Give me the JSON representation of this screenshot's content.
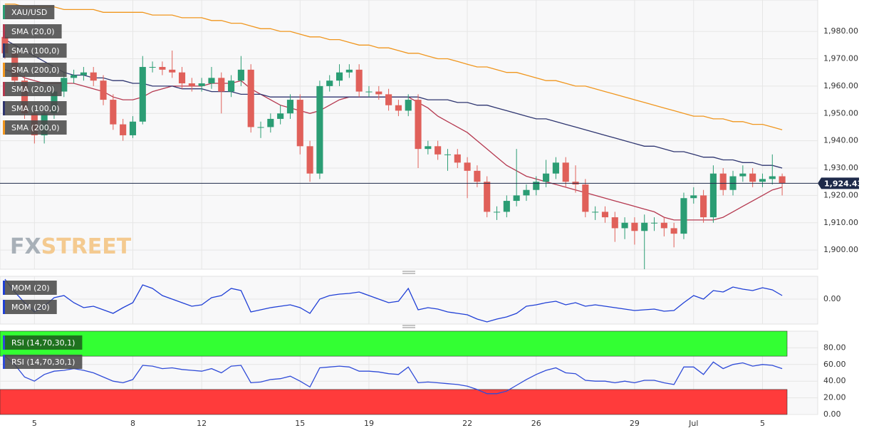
{
  "chart_data": [
    {
      "type": "candlestick",
      "name": "XAU/USD",
      "categories": [
        null,
        null,
        null,
        "5",
        null,
        null,
        null,
        null,
        null,
        null,
        null,
        null,
        null,
        "8",
        null,
        null,
        null,
        null,
        null,
        null,
        "12",
        null,
        null,
        null,
        null,
        null,
        null,
        null,
        null,
        null,
        "15",
        null,
        null,
        null,
        null,
        null,
        null,
        "19",
        null,
        null,
        null,
        null,
        null,
        null,
        null,
        null,
        null,
        "22",
        null,
        null,
        null,
        null,
        null,
        null,
        "26",
        null,
        null,
        null,
        null,
        null,
        null,
        null,
        null,
        null,
        "29",
        null,
        null,
        null,
        null,
        null,
        "Jul",
        null,
        null,
        null,
        null,
        null,
        null,
        "5",
        null,
        null
      ],
      "open": [
        1978,
        1972,
        1962,
        1950,
        1942,
        1950,
        1958,
        1963,
        1964,
        1965,
        1962,
        1955,
        1946,
        1942,
        1947,
        1967,
        1967,
        1966,
        1965,
        1961,
        1960,
        1961,
        1963,
        1958,
        1962,
        1966,
        1945,
        1945,
        1948,
        1950,
        1955,
        1938,
        1928,
        1960,
        1962,
        1965,
        1966,
        1958,
        1958,
        1957,
        1953,
        1951,
        1955,
        1937,
        1938,
        1935,
        1935,
        1932,
        1929,
        1925,
        1914,
        1914,
        1918,
        1920,
        1922,
        1925,
        1928,
        1932,
        1925,
        1924,
        1914,
        1914,
        1912,
        1908,
        1910,
        1907,
        1910,
        1910,
        1908,
        1906,
        1919,
        1920,
        1912,
        1928,
        1922,
        1927,
        1928,
        1925,
        1926,
        1927
      ],
      "high": [
        1980,
        1974,
        1964,
        1951,
        1952,
        1960,
        1965,
        1966,
        1967,
        1967,
        1964,
        1957,
        1948,
        1949,
        1971,
        1969,
        1969,
        1973,
        1967,
        1963,
        1963,
        1967,
        1965,
        1964,
        1971,
        1968,
        1947,
        1950,
        1953,
        1957,
        1957,
        1940,
        1962,
        1964,
        1968,
        1968,
        1968,
        1960,
        1960,
        1959,
        1955,
        1957,
        1957,
        1940,
        1940,
        1937,
        1937,
        1934,
        1931,
        1927,
        1916,
        1920,
        1937,
        1924,
        1927,
        1933,
        1934,
        1934,
        1931,
        1926,
        1916,
        1916,
        1914,
        1912,
        1912,
        1913,
        1912,
        1912,
        1910,
        1921,
        1923,
        1922,
        1931,
        1930,
        1929,
        1931,
        1930,
        1928,
        1935,
        1928
      ],
      "low": [
        1970,
        1960,
        1948,
        1939,
        1939,
        1948,
        1956,
        1961,
        1962,
        1960,
        1953,
        1944,
        1940,
        1941,
        1946,
        1965,
        1964,
        1963,
        1959,
        1958,
        1958,
        1959,
        1950,
        1956,
        1960,
        1943,
        1941,
        1943,
        1946,
        1948,
        1935,
        1925,
        1926,
        1958,
        1960,
        1963,
        1956,
        1956,
        1955,
        1951,
        1949,
        1949,
        1930,
        1935,
        1933,
        1929,
        1930,
        1919,
        1923,
        1912,
        1911,
        1912,
        1916,
        1918,
        1920,
        1923,
        1926,
        1923,
        1921,
        1912,
        1911,
        1910,
        1903,
        1904,
        1902,
        1893,
        1907,
        1905,
        1901,
        1904,
        1917,
        1910,
        1910,
        1920,
        1920,
        1925,
        1923,
        1923,
        1924,
        1920
      ],
      "close": [
        1972,
        1962,
        1950,
        1942,
        1950,
        1958,
        1963,
        1964,
        1965,
        1962,
        1955,
        1946,
        1942,
        1947,
        1967,
        1967,
        1966,
        1965,
        1961,
        1960,
        1961,
        1963,
        1958,
        1962,
        1966,
        1945,
        1945,
        1948,
        1950,
        1955,
        1938,
        1928,
        1960,
        1962,
        1965,
        1966,
        1958,
        1958,
        1957,
        1953,
        1951,
        1955,
        1937,
        1938,
        1935,
        1935,
        1932,
        1929,
        1925,
        1914,
        1914,
        1918,
        1920,
        1922,
        1925,
        1928,
        1932,
        1925,
        1924,
        1914,
        1914,
        1912,
        1908,
        1910,
        1907,
        1910,
        1910,
        1908,
        1906,
        1919,
        1920,
        1912,
        1928,
        1922,
        1927,
        1928,
        1925,
        1926,
        1927,
        1924.43
      ],
      "up_color": "#2b9d74",
      "down_color": "#e0605a",
      "series": [
        {
          "name": "SMA (20,0)",
          "color": "#b5384f",
          "values": [
            1966,
            1965,
            1963,
            1962,
            1961,
            1961,
            1961,
            1961,
            1960,
            1959,
            1958,
            1956,
            1955,
            1955,
            1956,
            1958,
            1959,
            1960,
            1960,
            1960,
            1960,
            1961,
            1961,
            1961,
            1962,
            1959,
            1957,
            1955,
            1953,
            1952,
            1951,
            1950,
            1951,
            1953,
            1955,
            1956,
            1956,
            1956,
            1956,
            1956,
            1956,
            1956,
            1954,
            1952,
            1949,
            1947,
            1945,
            1943,
            1940,
            1937,
            1934,
            1931,
            1929,
            1927,
            1926,
            1925,
            1924,
            1923,
            1922,
            1921,
            1920,
            1919,
            1918,
            1917,
            1916,
            1915,
            1914,
            1912,
            1911,
            1911,
            1911,
            1911,
            1911,
            1912,
            1914,
            1916,
            1918,
            1920,
            1922,
            1923
          ]
        },
        {
          "name": "SMA (100,0)",
          "color": "#2e3570",
          "values": [
            1977,
            1975,
            1973,
            1971,
            1969,
            1967,
            1965,
            1964,
            1964,
            1963,
            1963,
            1962,
            1962,
            1961,
            1961,
            1960,
            1960,
            1960,
            1959,
            1959,
            1959,
            1958,
            1958,
            1958,
            1957,
            1957,
            1957,
            1956,
            1956,
            1956,
            1956,
            1956,
            1956,
            1956,
            1956,
            1956,
            1956,
            1956,
            1956,
            1956,
            1956,
            1956,
            1956,
            1955,
            1955,
            1955,
            1954,
            1954,
            1953,
            1953,
            1952,
            1951,
            1950,
            1949,
            1948,
            1948,
            1947,
            1946,
            1945,
            1944,
            1943,
            1942,
            1941,
            1940,
            1939,
            1938,
            1938,
            1937,
            1936,
            1936,
            1935,
            1934,
            1934,
            1933,
            1933,
            1932,
            1932,
            1931,
            1931,
            1930
          ]
        },
        {
          "name": "SMA (200,0)",
          "color": "#f0961e",
          "values": [
            1990,
            1990,
            1989,
            1989,
            1989,
            1989,
            1988,
            1988,
            1988,
            1988,
            1987,
            1987,
            1987,
            1987,
            1987,
            1986,
            1986,
            1986,
            1985,
            1985,
            1985,
            1984,
            1984,
            1983,
            1983,
            1982,
            1981,
            1981,
            1980,
            1980,
            1979,
            1978,
            1978,
            1977,
            1977,
            1976,
            1975,
            1975,
            1974,
            1974,
            1973,
            1972,
            1972,
            1971,
            1970,
            1970,
            1969,
            1968,
            1967,
            1967,
            1966,
            1965,
            1965,
            1964,
            1963,
            1962,
            1962,
            1961,
            1960,
            1960,
            1959,
            1958,
            1957,
            1956,
            1955,
            1954,
            1953,
            1952,
            1951,
            1950,
            1949,
            1949,
            1948,
            1948,
            1947,
            1947,
            1946,
            1946,
            1945,
            1944
          ]
        }
      ],
      "ylim": [
        1893,
        1991.5
      ],
      "yticks": [
        {
          "value": 1900,
          "label": "1,900.00"
        },
        {
          "value": 1910,
          "label": "1,910.00"
        },
        {
          "value": 1920,
          "label": "1,920.00"
        },
        {
          "value": 1930,
          "label": "1,930.00"
        },
        {
          "value": 1940,
          "label": "1,940.00"
        },
        {
          "value": 1950,
          "label": "1,950.00"
        },
        {
          "value": 1960,
          "label": "1,960.00"
        },
        {
          "value": 1970,
          "label": "1,970.00"
        },
        {
          "value": 1980,
          "label": "1,980.00"
        }
      ],
      "grid": true,
      "last_price": {
        "value": 1924.43,
        "label": "1,924.43"
      },
      "watermark": [
        "FX",
        "STREET"
      ]
    },
    {
      "type": "line",
      "series": [
        {
          "name": "MOM (20)",
          "color": "#1f3fd6",
          "values": [
            28,
            10,
            -5,
            -18,
            -10,
            2,
            5,
            -5,
            -12,
            -10,
            -15,
            -20,
            -12,
            -5,
            20,
            15,
            5,
            0,
            -5,
            -10,
            -8,
            2,
            5,
            15,
            12,
            -18,
            -15,
            -12,
            -10,
            -8,
            -12,
            -20,
            0,
            5,
            7,
            8,
            10,
            5,
            0,
            -5,
            -3,
            15,
            -15,
            -12,
            -14,
            -18,
            -20,
            -22,
            -28,
            -32,
            -28,
            -25,
            -20,
            -10,
            -8,
            -5,
            -3,
            -8,
            -5,
            -10,
            -8,
            -10,
            -12,
            -14,
            -16,
            -15,
            -14,
            -17,
            -16,
            -5,
            5,
            0,
            12,
            10,
            17,
            14,
            12,
            16,
            13,
            5
          ]
        }
      ],
      "ylim": [
        -35,
        32
      ],
      "yticks": [
        {
          "value": 0,
          "label": "0.00"
        }
      ],
      "grid": true
    },
    {
      "type": "line",
      "series": [
        {
          "name": "RSI (14,70,30,1)",
          "color": "#2f4bd8",
          "values": [
            70,
            60,
            45,
            40,
            48,
            52,
            53,
            55,
            53,
            50,
            45,
            40,
            38,
            42,
            59,
            58,
            55,
            56,
            54,
            53,
            52,
            55,
            50,
            58,
            59,
            38,
            39,
            42,
            43,
            46,
            40,
            33,
            56,
            57,
            58,
            57,
            52,
            52,
            51,
            49,
            48,
            57,
            38,
            39,
            38,
            37,
            36,
            34,
            30,
            25,
            25,
            28,
            35,
            42,
            48,
            53,
            56,
            50,
            49,
            41,
            40,
            40,
            38,
            40,
            38,
            41,
            41,
            38,
            36,
            57,
            57,
            48,
            63,
            55,
            60,
            62,
            58,
            60,
            59,
            55
          ]
        }
      ],
      "ylim": [
        0,
        100
      ],
      "yticks": [
        {
          "value": 0,
          "label": "0.00"
        },
        {
          "value": 20,
          "label": "20.00"
        },
        {
          "value": 40,
          "label": "40.00"
        },
        {
          "value": 60,
          "label": "60.00"
        },
        {
          "value": 80,
          "label": "80.00"
        }
      ],
      "bands": [
        {
          "from": 70,
          "to": 100,
          "color": "#33ff33"
        },
        {
          "from": 0,
          "to": 30,
          "color": "#ff3b3b"
        }
      ],
      "grid": true
    }
  ]
}
